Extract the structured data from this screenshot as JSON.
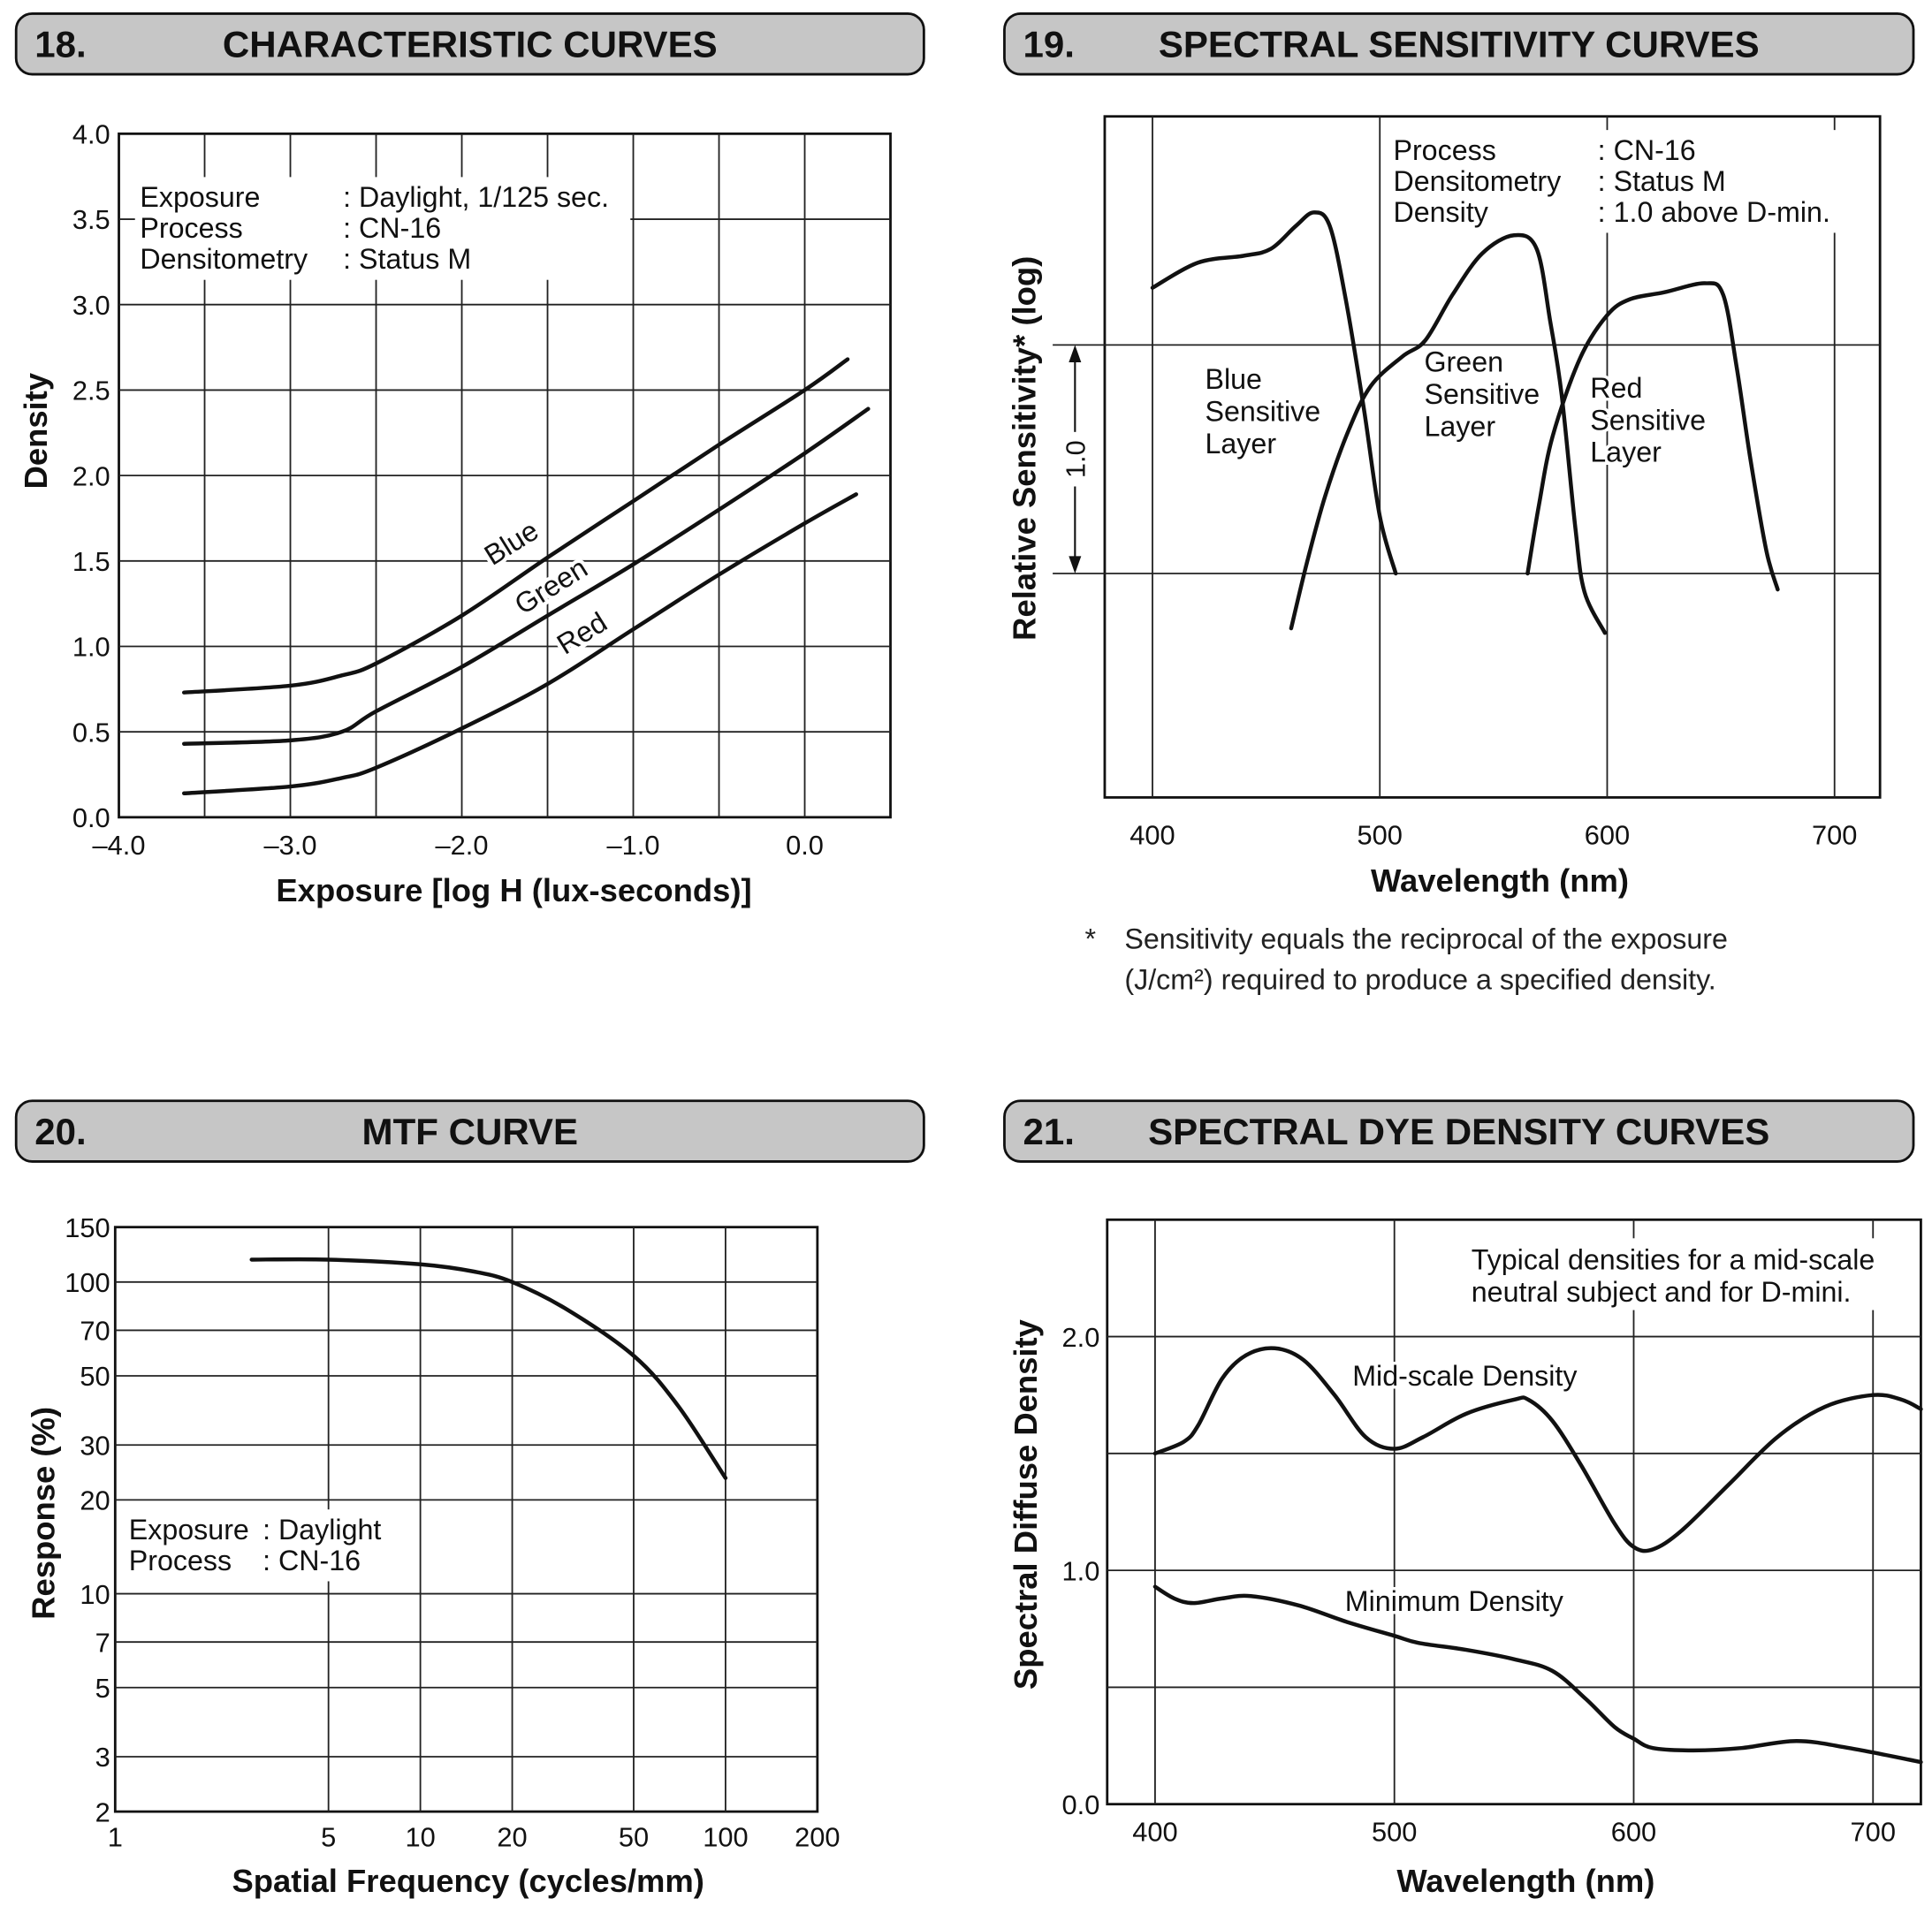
{
  "panels": [
    {
      "number": "18.",
      "title": "CHARACTERISTIC CURVES"
    },
    {
      "number": "19.",
      "title": "SPECTRAL SENSITIVITY CURVES"
    },
    {
      "number": "20.",
      "title": "MTF CURVE"
    },
    {
      "number": "21.",
      "title": "SPECTRAL DYE DENSITY CURVES"
    }
  ],
  "footnote": {
    "marker": "*",
    "line1": "Sensitivity equals the reciprocal of the exposure",
    "line2": "(J/cm²) required to produce a specified density."
  },
  "chart_data": [
    {
      "type": "line",
      "title": "CHARACTERISTIC CURVES",
      "xlabel": "Exposure [log H (lux-seconds)]",
      "ylabel": "Density",
      "xlim": [
        -4,
        0.5
      ],
      "ylim": [
        0,
        4
      ],
      "xscale": "linear",
      "yscale": "linear",
      "grid": true,
      "xgrid": [
        -3.5,
        -3,
        -2.5,
        -2,
        -1.5,
        -1,
        -0.5,
        0
      ],
      "ygrid": [
        0.5,
        1,
        1.5,
        2,
        2.5,
        3,
        3.5
      ],
      "xticks": [
        {
          "v": -4,
          "label": "–4.0"
        },
        {
          "v": -3,
          "label": "–3.0"
        },
        {
          "v": -2,
          "label": "–2.0"
        },
        {
          "v": -1,
          "label": "–1.0"
        },
        {
          "v": 0,
          "label": "0.0"
        }
      ],
      "yticks": [
        {
          "v": 0,
          "label": "0.0"
        },
        {
          "v": 0.5,
          "label": "0.5"
        },
        {
          "v": 1,
          "label": "1.0"
        },
        {
          "v": 1.5,
          "label": "1.5"
        },
        {
          "v": 2,
          "label": "2.0"
        },
        {
          "v": 2.5,
          "label": "2.5"
        },
        {
          "v": 3,
          "label": "3.0"
        },
        {
          "v": 3.5,
          "label": "3.5"
        },
        {
          "v": 4,
          "label": "4.0"
        }
      ],
      "annotation": [
        {
          "key": "Exposure",
          "value": ": Daylight, 1/125 sec."
        },
        {
          "key": "Process",
          "value": ": CN-16"
        },
        {
          "key": "Densitometry",
          "value": ": Status M"
        }
      ],
      "series": [
        {
          "name": "Blue",
          "points": [
            [
              -3.62,
              0.73
            ],
            [
              -3.0,
              0.77
            ],
            [
              -2.7,
              0.83
            ],
            [
              -2.5,
              0.9
            ],
            [
              -2.0,
              1.18
            ],
            [
              -1.5,
              1.52
            ],
            [
              -1.0,
              1.85
            ],
            [
              -0.5,
              2.18
            ],
            [
              0,
              2.5
            ],
            [
              0.25,
              2.68
            ]
          ]
        },
        {
          "name": "Green",
          "points": [
            [
              -3.62,
              0.43
            ],
            [
              -3.0,
              0.45
            ],
            [
              -2.7,
              0.5
            ],
            [
              -2.5,
              0.62
            ],
            [
              -2.0,
              0.88
            ],
            [
              -1.5,
              1.18
            ],
            [
              -1.0,
              1.48
            ],
            [
              -0.5,
              1.8
            ],
            [
              0,
              2.13
            ],
            [
              0.37,
              2.39
            ]
          ]
        },
        {
          "name": "Red",
          "points": [
            [
              -3.62,
              0.14
            ],
            [
              -3.0,
              0.18
            ],
            [
              -2.7,
              0.23
            ],
            [
              -2.5,
              0.29
            ],
            [
              -2.0,
              0.52
            ],
            [
              -1.5,
              0.78
            ],
            [
              -1.0,
              1.1
            ],
            [
              -0.5,
              1.42
            ],
            [
              0,
              1.72
            ],
            [
              0.3,
              1.89
            ]
          ]
        }
      ]
    },
    {
      "type": "line",
      "title": "SPECTRAL SENSITIVITY CURVES",
      "xlabel": "Wavelength (nm)",
      "ylabel": "Relative Sensitivity* (log)",
      "xlim": [
        379,
        720
      ],
      "ylim": [
        -0.98,
        2.0
      ],
      "xscale": "linear",
      "yscale": "linear",
      "grid": true,
      "xgrid": [
        400,
        500,
        600,
        700
      ],
      "ygrid": [
        0,
        1
      ],
      "xticks": [
        {
          "v": 400,
          "label": "400"
        },
        {
          "v": 500,
          "label": "500"
        },
        {
          "v": 600,
          "label": "600"
        },
        {
          "v": 700,
          "label": "700"
        }
      ],
      "yticks": [],
      "scale_marker": {
        "from": 0,
        "to": 1,
        "label": "1.0"
      },
      "annotation": [
        {
          "key": "Process",
          "value": ": CN-16"
        },
        {
          "key": "Densitometry",
          "value": ": Status M"
        },
        {
          "key": "Density",
          "value": ": 1.0 above D-min."
        }
      ],
      "series": [
        {
          "name": "Blue Sensitive Layer",
          "label_lines": [
            "Blue",
            "Sensitive",
            "Layer"
          ],
          "points": [
            [
              400,
              1.25
            ],
            [
              420,
              1.36
            ],
            [
              440,
              1.39
            ],
            [
              452,
              1.42
            ],
            [
              463,
              1.52
            ],
            [
              471,
              1.58
            ],
            [
              478,
              1.52
            ],
            [
              485,
              1.2
            ],
            [
              493,
              0.72
            ],
            [
              500,
              0.25
            ],
            [
              507,
              0.0
            ]
          ]
        },
        {
          "name": "Green Sensitive Layer",
          "label_lines": [
            "Green",
            "Sensitive",
            "Layer"
          ],
          "points": [
            [
              461,
              -0.24
            ],
            [
              468,
              0.05
            ],
            [
              476,
              0.34
            ],
            [
              486,
              0.62
            ],
            [
              496,
              0.82
            ],
            [
              510,
              0.95
            ],
            [
              520,
              1.02
            ],
            [
              532,
              1.22
            ],
            [
              545,
              1.4
            ],
            [
              559,
              1.48
            ],
            [
              569,
              1.42
            ],
            [
              575,
              1.1
            ],
            [
              580,
              0.78
            ],
            [
              586,
              0.2
            ],
            [
              590,
              -0.08
            ],
            [
              599,
              -0.26
            ]
          ]
        },
        {
          "name": "Red Sensitive Layer",
          "label_lines": [
            "Red",
            "Sensitive",
            "Layer"
          ],
          "points": [
            [
              565,
              0.0
            ],
            [
              570,
              0.3
            ],
            [
              576,
              0.6
            ],
            [
              588,
              0.94
            ],
            [
              600,
              1.13
            ],
            [
              610,
              1.2
            ],
            [
              625,
              1.23
            ],
            [
              643,
              1.27
            ],
            [
              651,
              1.22
            ],
            [
              657,
              0.9
            ],
            [
              663,
              0.5
            ],
            [
              670,
              0.1
            ],
            [
              675,
              -0.07
            ]
          ]
        }
      ]
    },
    {
      "type": "line",
      "title": "MTF CURVE",
      "xlabel": "Spatial Frequency (cycles/mm)",
      "ylabel": "Response (%)",
      "xlim": [
        1,
        200
      ],
      "ylim": [
        2,
        150
      ],
      "xscale": "log",
      "yscale": "log",
      "grid": true,
      "xgrid": [
        5,
        10,
        20,
        50,
        100
      ],
      "ygrid": [
        3,
        5,
        7,
        10,
        20,
        30,
        50,
        70,
        100
      ],
      "xticks": [
        {
          "v": 1,
          "label": "1"
        },
        {
          "v": 5,
          "label": "5"
        },
        {
          "v": 10,
          "label": "10"
        },
        {
          "v": 20,
          "label": "20"
        },
        {
          "v": 50,
          "label": "50"
        },
        {
          "v": 100,
          "label": "100"
        },
        {
          "v": 200,
          "label": "200"
        }
      ],
      "yticks": [
        {
          "v": 2,
          "label": "2"
        },
        {
          "v": 3,
          "label": "3"
        },
        {
          "v": 5,
          "label": "5"
        },
        {
          "v": 7,
          "label": "7"
        },
        {
          "v": 10,
          "label": "10"
        },
        {
          "v": 20,
          "label": "20"
        },
        {
          "v": 30,
          "label": "30"
        },
        {
          "v": 50,
          "label": "50"
        },
        {
          "v": 70,
          "label": "70"
        },
        {
          "v": 100,
          "label": "100"
        },
        {
          "v": 150,
          "label": "150"
        }
      ],
      "annotation": [
        {
          "key": "Exposure",
          "value": ": Daylight"
        },
        {
          "key": "Process",
          "value": ": CN-16"
        }
      ],
      "series": [
        {
          "points": [
            [
              2.8,
              118
            ],
            [
              5,
              118
            ],
            [
              10,
              114
            ],
            [
              15,
              108
            ],
            [
              20,
              100
            ],
            [
              30,
              82
            ],
            [
              50,
              58
            ],
            [
              70,
              40
            ],
            [
              100,
              23.5
            ]
          ]
        }
      ]
    },
    {
      "type": "line",
      "title": "SPECTRAL DYE DENSITY CURVES",
      "xlabel": "Wavelength (nm)",
      "ylabel": "Spectral Diffuse Density",
      "xlim": [
        380,
        720
      ],
      "ylim": [
        0,
        2.5
      ],
      "xscale": "linear",
      "yscale": "linear",
      "grid": true,
      "xgrid": [
        400,
        500,
        600,
        700
      ],
      "ygrid": [
        0.5,
        1.0,
        1.5,
        2.0
      ],
      "xticks": [
        {
          "v": 400,
          "label": "400"
        },
        {
          "v": 500,
          "label": "500"
        },
        {
          "v": 600,
          "label": "600"
        },
        {
          "v": 700,
          "label": "700"
        }
      ],
      "yticks": [
        {
          "v": 0,
          "label": "0.0"
        },
        {
          "v": 1,
          "label": "1.0"
        },
        {
          "v": 2,
          "label": "2.0"
        }
      ],
      "annotation_lines": [
        "Typical densities for a mid-scale",
        "neutral subject and for D-mini."
      ],
      "series": [
        {
          "name": "Mid-scale Density",
          "points": [
            [
              400,
              1.5
            ],
            [
              412,
              1.55
            ],
            [
              418,
              1.62
            ],
            [
              428,
              1.82
            ],
            [
              438,
              1.92
            ],
            [
              450,
              1.95
            ],
            [
              462,
              1.9
            ],
            [
              475,
              1.75
            ],
            [
              488,
              1.57
            ],
            [
              500,
              1.52
            ],
            [
              512,
              1.57
            ],
            [
              530,
              1.67
            ],
            [
              550,
              1.73
            ],
            [
              556,
              1.73
            ],
            [
              566,
              1.64
            ],
            [
              578,
              1.45
            ],
            [
              592,
              1.2
            ],
            [
              600,
              1.1
            ],
            [
              608,
              1.09
            ],
            [
              620,
              1.17
            ],
            [
              640,
              1.37
            ],
            [
              660,
              1.57
            ],
            [
              680,
              1.7
            ],
            [
              700,
              1.75
            ],
            [
              712,
              1.73
            ],
            [
              720,
              1.69
            ]
          ]
        },
        {
          "name": "Minimum Density",
          "points": [
            [
              400,
              0.93
            ],
            [
              408,
              0.88
            ],
            [
              416,
              0.86
            ],
            [
              428,
              0.88
            ],
            [
              440,
              0.89
            ],
            [
              460,
              0.85
            ],
            [
              480,
              0.78
            ],
            [
              500,
              0.72
            ],
            [
              510,
              0.69
            ],
            [
              530,
              0.66
            ],
            [
              550,
              0.62
            ],
            [
              566,
              0.57
            ],
            [
              580,
              0.45
            ],
            [
              592,
              0.33
            ],
            [
              600,
              0.28
            ],
            [
              608,
              0.24
            ],
            [
              625,
              0.23
            ],
            [
              645,
              0.24
            ],
            [
              668,
              0.27
            ],
            [
              690,
              0.24
            ],
            [
              720,
              0.18
            ]
          ]
        }
      ]
    }
  ]
}
